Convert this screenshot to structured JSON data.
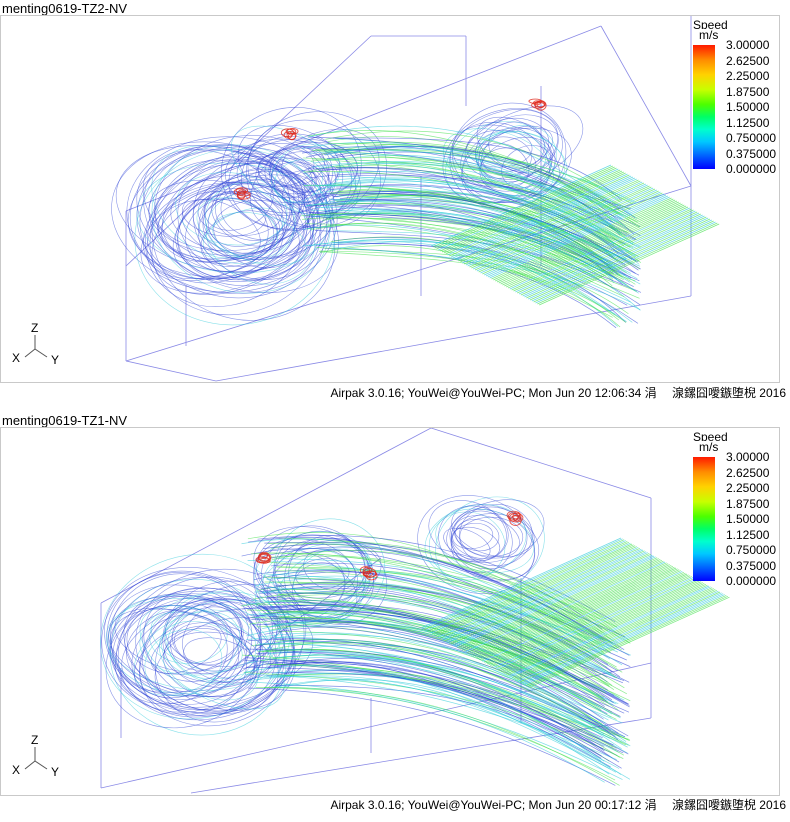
{
  "panels": [
    {
      "title": "menting0619-TZ2-NV",
      "legend": {
        "title": "Speed",
        "units": "m/s",
        "labels": [
          "3.00000",
          "2.62500",
          "2.25000",
          "1.87500",
          "1.50000",
          "1.12500",
          "0.750000",
          "0.375000",
          "0.000000"
        ]
      },
      "axes": {
        "z": "Z",
        "x": "X",
        "y": "Y"
      },
      "footer": "Airpak 3.0.16; YouWei@YouWei-PC; Mon Jun 20 12:06:34 涓　 湶鏍囧噯鏃堕棿 2016"
    },
    {
      "title": "menting0619-TZ1-NV",
      "legend": {
        "title": "Speed",
        "units": "m/s",
        "labels": [
          "3.00000",
          "2.62500",
          "2.25000",
          "1.87500",
          "1.50000",
          "1.12500",
          "0.750000",
          "0.375000",
          "0.000000"
        ]
      },
      "axes": {
        "z": "Z",
        "x": "X",
        "y": "Y"
      },
      "footer": "Airpak 3.0.16; YouWei@YouWei-PC; Mon Jun 20 00:17:12 涓　 湶鏍囧噯鏃堕棿 2016"
    }
  ],
  "colors": {
    "frame": "#8a8ae6",
    "low": "#2a3fd6",
    "mid": "#29c9d9",
    "high": "#3fe04a",
    "hot": "#e0281c"
  }
}
